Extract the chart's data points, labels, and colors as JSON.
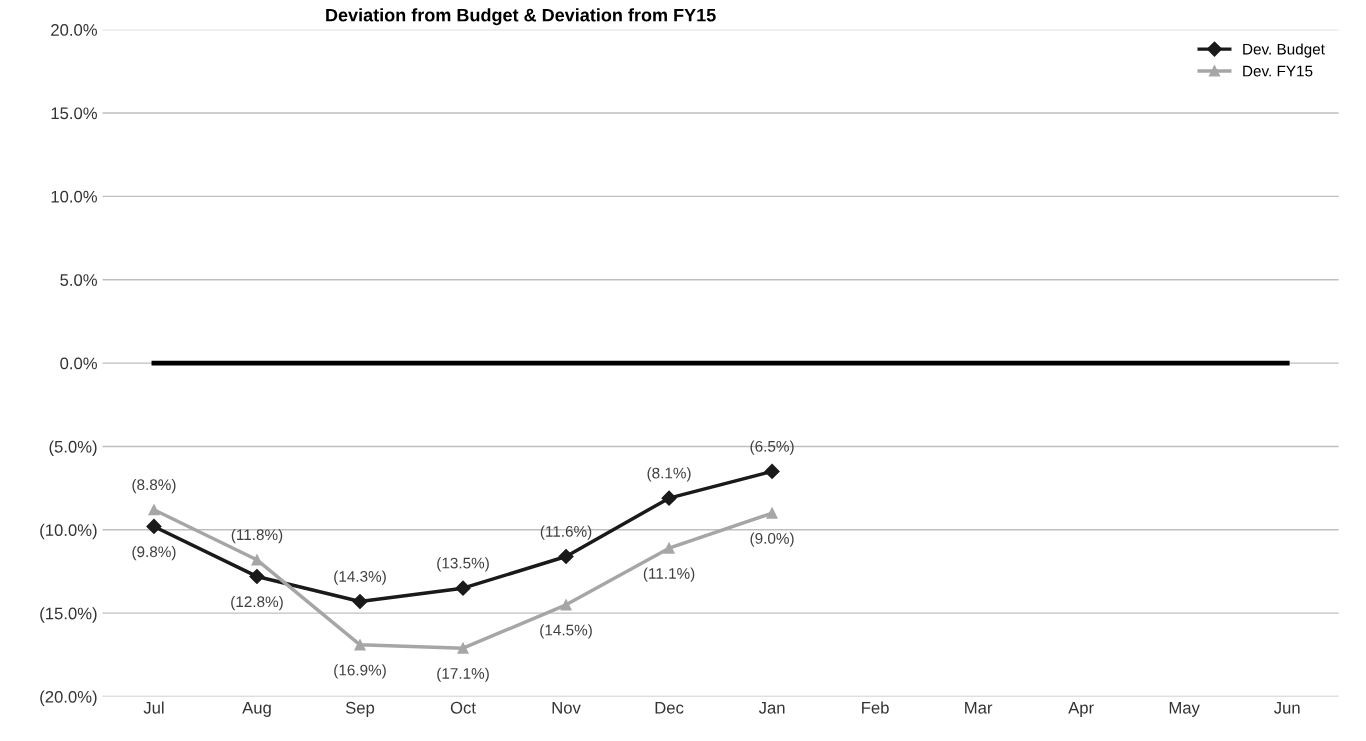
{
  "chart_data": {
    "type": "line",
    "title": "Deviation from Budget & Deviation from FY15",
    "categories": [
      "Jul",
      "Aug",
      "Sep",
      "Oct",
      "Nov",
      "Dec",
      "Jan",
      "Feb",
      "Mar",
      "Apr",
      "May",
      "Jun"
    ],
    "series": [
      {
        "color": "#000000",
        "marker": "none",
        "values": [
          0,
          0,
          0,
          0,
          0,
          0,
          0,
          0,
          0,
          0,
          0,
          0
        ]
      },
      {
        "name": "Dev. Budget",
        "color": "#1a1a1a",
        "marker": "diamond",
        "values": [
          -9.8,
          -12.8,
          -14.3,
          -13.5,
          -11.6,
          -8.1,
          -6.5,
          null,
          null,
          null,
          null,
          null
        ],
        "value_labels": [
          "(9.8%)",
          "(12.8%)",
          "(14.3%)",
          "(13.5%)",
          "(11.6%)",
          "(8.1%)",
          "(6.5%)",
          null,
          null,
          null,
          null,
          null
        ]
      },
      {
        "name": "Dev. FY15",
        "color": "#a6a6a6",
        "marker": "triangle",
        "values": [
          -8.8,
          -11.8,
          -16.9,
          -17.1,
          -14.5,
          -11.1,
          -9.0,
          null,
          null,
          null,
          null,
          null
        ],
        "value_labels": [
          "(8.8%)",
          "(11.8%)",
          "(16.9%)",
          "(17.1%)",
          "(14.5%)",
          "(11.1%)",
          "(9.0%)",
          null,
          null,
          null,
          null,
          null
        ]
      }
    ],
    "ylim": [
      -20,
      20
    ],
    "yticks": [
      {
        "value": -20,
        "label": "(20.0%)"
      },
      {
        "value": -15,
        "label": "(15.0%)"
      },
      {
        "value": -10,
        "label": "(10.0%)"
      },
      {
        "value": -5,
        "label": "(5.0%)"
      },
      {
        "value": 0,
        "label": "0.0%"
      },
      {
        "value": 5,
        "label": "5.0%"
      },
      {
        "value": 10,
        "label": "10.0%"
      },
      {
        "value": 15,
        "label": "15.0%"
      },
      {
        "value": 20,
        "label": "20.0%"
      }
    ],
    "grid": "y",
    "legend": "top right",
    "line_style": "solid"
  }
}
